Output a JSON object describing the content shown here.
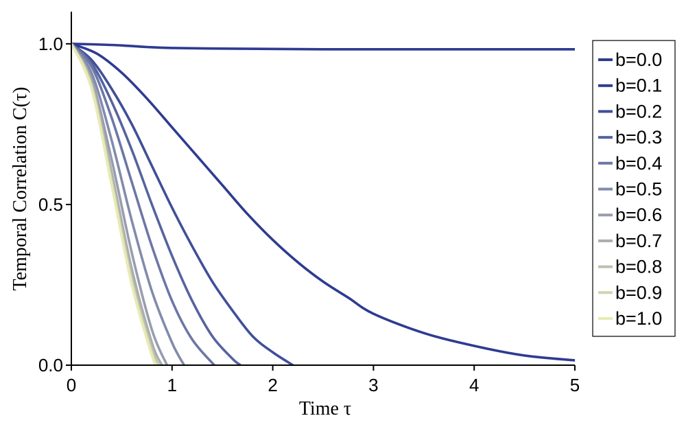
{
  "chart_data": {
    "type": "line",
    "xlabel": "Time τ",
    "ylabel": "Temporal Correlation C(τ)",
    "xlim": [
      0,
      5
    ],
    "ylim": [
      0,
      1.1
    ],
    "x_ticks": [
      "0",
      "1",
      "2",
      "3",
      "4",
      "5"
    ],
    "y_ticks": [
      "0.0",
      "0.5",
      "1.0"
    ],
    "x_tick_values": [
      0,
      1,
      2,
      3,
      4,
      5
    ],
    "y_tick_values": [
      0,
      0.5,
      1.0
    ],
    "grid": false,
    "legend_position": "right",
    "series": [
      {
        "name": "b=0.0",
        "color": "#2e3b91",
        "x": [
          0,
          0.25,
          0.5,
          0.75,
          1,
          1.5,
          2,
          2.5,
          3,
          4,
          5
        ],
        "y": [
          1.0,
          0.998,
          0.995,
          0.99,
          0.987,
          0.985,
          0.984,
          0.983,
          0.983,
          0.983,
          0.983
        ]
      },
      {
        "name": "b=0.1",
        "color": "#2e3b91",
        "x": [
          0,
          0.25,
          0.5,
          0.75,
          1,
          1.25,
          1.5,
          1.75,
          2,
          2.25,
          2.5,
          2.75,
          3,
          3.5,
          4,
          4.5,
          5
        ],
        "y": [
          1.0,
          0.97,
          0.91,
          0.83,
          0.74,
          0.65,
          0.56,
          0.47,
          0.39,
          0.32,
          0.26,
          0.21,
          0.16,
          0.1,
          0.06,
          0.03,
          0.015
        ]
      },
      {
        "name": "b=0.2",
        "color": "#3f4f99",
        "x": [
          0,
          0.2,
          0.4,
          0.6,
          0.8,
          1,
          1.2,
          1.4,
          1.6,
          1.8,
          2,
          2.2
        ],
        "y": [
          1.0,
          0.95,
          0.86,
          0.75,
          0.62,
          0.49,
          0.37,
          0.26,
          0.17,
          0.09,
          0.04,
          0.0
        ]
      },
      {
        "name": "b=0.3",
        "color": "#56639f",
        "x": [
          0,
          0.2,
          0.4,
          0.6,
          0.8,
          1,
          1.2,
          1.4,
          1.6,
          1.68
        ],
        "y": [
          1.0,
          0.94,
          0.82,
          0.67,
          0.5,
          0.34,
          0.2,
          0.09,
          0.02,
          0.0
        ]
      },
      {
        "name": "b=0.4",
        "color": "#6c77a6",
        "x": [
          0,
          0.2,
          0.4,
          0.6,
          0.8,
          1,
          1.2,
          1.42
        ],
        "y": [
          1.0,
          0.93,
          0.77,
          0.57,
          0.37,
          0.2,
          0.08,
          0.0
        ]
      },
      {
        "name": "b=0.5",
        "color": "#828bab",
        "x": [
          0,
          0.2,
          0.4,
          0.6,
          0.8,
          1,
          1.12
        ],
        "y": [
          1.0,
          0.91,
          0.7,
          0.45,
          0.23,
          0.07,
          0.0
        ]
      },
      {
        "name": "b=0.6",
        "color": "#979dad",
        "x": [
          0,
          0.2,
          0.4,
          0.6,
          0.8,
          0.95
        ],
        "y": [
          1.0,
          0.89,
          0.64,
          0.35,
          0.11,
          0.0
        ]
      },
      {
        "name": "b=0.7",
        "color": "#aaaeae",
        "x": [
          0,
          0.2,
          0.4,
          0.6,
          0.8,
          0.9
        ],
        "y": [
          1.0,
          0.88,
          0.6,
          0.3,
          0.07,
          0.0
        ]
      },
      {
        "name": "b=0.8",
        "color": "#bdbfae",
        "x": [
          0,
          0.2,
          0.4,
          0.6,
          0.8,
          0.87
        ],
        "y": [
          1.0,
          0.87,
          0.58,
          0.27,
          0.05,
          0.0
        ]
      },
      {
        "name": "b=0.9",
        "color": "#d2d4ae",
        "x": [
          0,
          0.2,
          0.4,
          0.6,
          0.8,
          0.86
        ],
        "y": [
          1.0,
          0.87,
          0.57,
          0.26,
          0.04,
          0.0
        ]
      },
      {
        "name": "b=1.0",
        "color": "#e8ebb4",
        "x": [
          0,
          0.2,
          0.4,
          0.6,
          0.8,
          0.85
        ],
        "y": [
          1.0,
          0.86,
          0.56,
          0.25,
          0.03,
          0.0
        ]
      }
    ]
  }
}
